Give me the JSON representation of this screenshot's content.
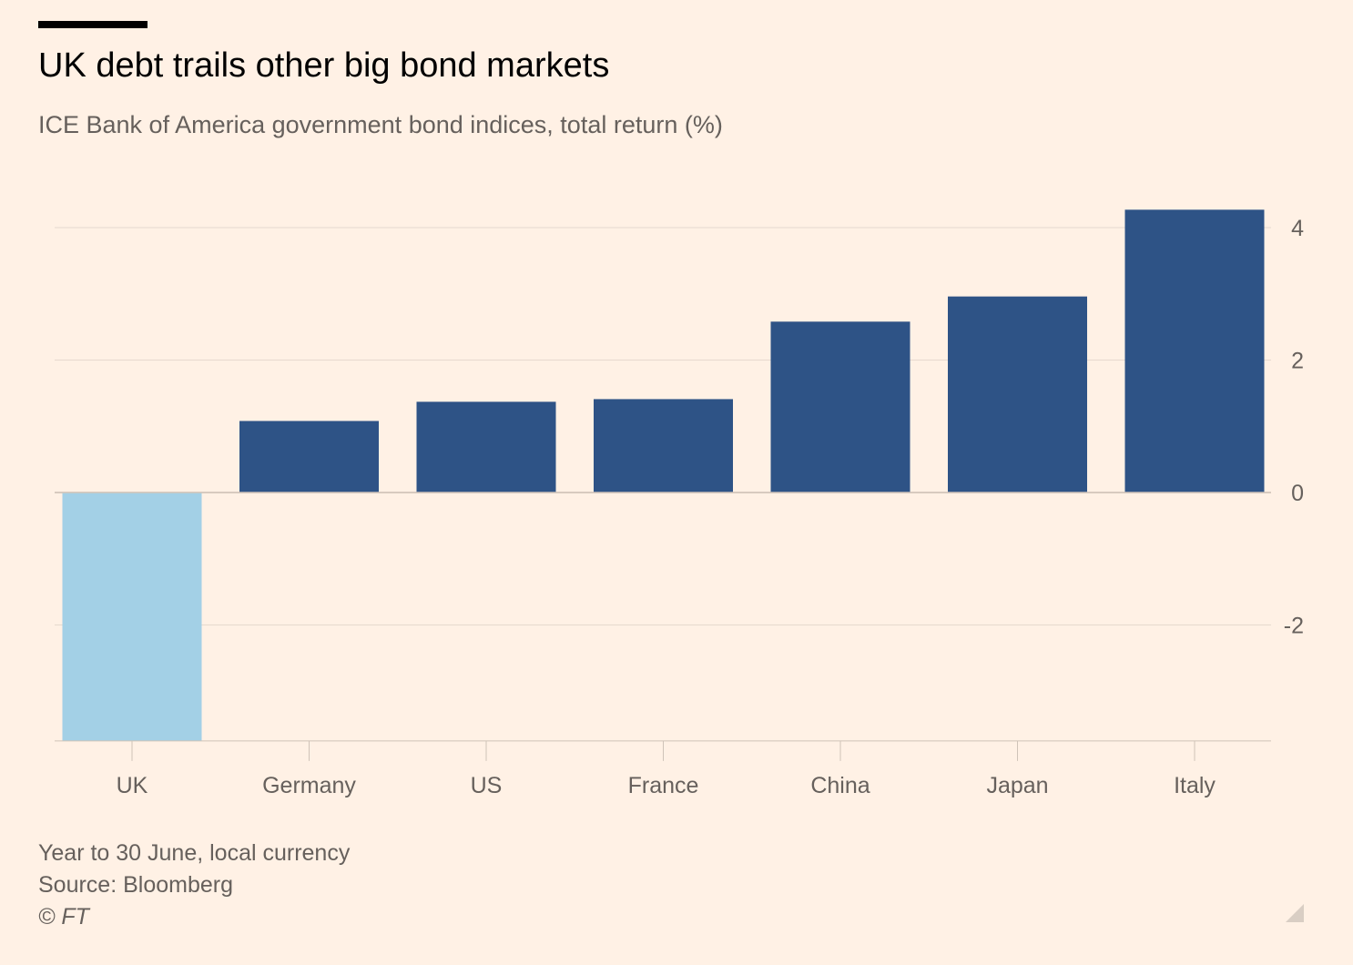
{
  "header": {
    "title": "UK debt trails other big bond markets",
    "subtitle": "ICE Bank of America government bond indices, total return (%)"
  },
  "footer": {
    "note": "Year to 30 June, local currency",
    "source": "Source: Bloomberg",
    "copyright": "© FT"
  },
  "colors": {
    "background": "#fff1e5",
    "highlight_bar": "#a3d0e6",
    "bar": "#2e5386",
    "gridline": "#e6d9ce",
    "axis_text": "#66605c"
  },
  "chart_data": {
    "type": "bar",
    "title": "UK debt trails other big bond markets",
    "subtitle": "ICE Bank of America government bond indices, total return (%)",
    "categories": [
      "UK",
      "Germany",
      "US",
      "France",
      "China",
      "Japan",
      "Italy"
    ],
    "values": [
      -3.75,
      1.08,
      1.37,
      1.41,
      2.58,
      2.96,
      4.27
    ],
    "highlight": [
      "UK"
    ],
    "xlabel": "",
    "ylabel": "",
    "ylim": [
      -3.75,
      4.27
    ],
    "yticks": [
      -2,
      0,
      2,
      4
    ],
    "y_axis_side": "right",
    "grid": true
  }
}
